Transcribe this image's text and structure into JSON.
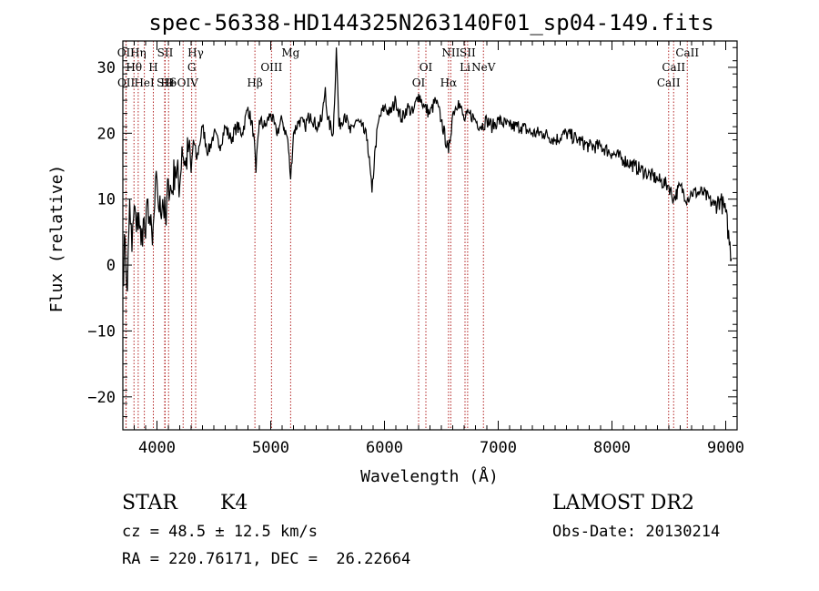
{
  "chart_data": {
    "type": "line",
    "title": "spec-56338-HD144325N263140F01_sp04-149.fits",
    "xlabel": "Wavelength (Å)",
    "ylabel": "Flux (relative)",
    "xlim": [
      3700,
      9100
    ],
    "ylim": [
      -25,
      34
    ],
    "xticks": [
      4000,
      5000,
      6000,
      7000,
      8000,
      9000
    ],
    "yticks": [
      -20,
      -10,
      0,
      10,
      20,
      30
    ],
    "series": [
      {
        "points": [
          [
            3700,
            -2
          ],
          [
            3720,
            4
          ],
          [
            3740,
            -4
          ],
          [
            3760,
            10
          ],
          [
            3780,
            2
          ],
          [
            3800,
            9
          ],
          [
            3820,
            5
          ],
          [
            3840,
            8
          ],
          [
            3860,
            3
          ],
          [
            3880,
            7
          ],
          [
            3900,
            4
          ],
          [
            3920,
            10
          ],
          [
            3940,
            6
          ],
          [
            3960,
            3
          ],
          [
            3980,
            9
          ],
          [
            4000,
            13
          ],
          [
            4020,
            8
          ],
          [
            4050,
            10
          ],
          [
            4080,
            6
          ],
          [
            4100,
            13
          ],
          [
            4130,
            11
          ],
          [
            4160,
            15
          ],
          [
            4200,
            12
          ],
          [
            4220,
            18
          ],
          [
            4250,
            15
          ],
          [
            4280,
            18
          ],
          [
            4300,
            14
          ],
          [
            4320,
            19
          ],
          [
            4350,
            16
          ],
          [
            4400,
            21
          ],
          [
            4450,
            17
          ],
          [
            4500,
            20
          ],
          [
            4550,
            18
          ],
          [
            4600,
            21
          ],
          [
            4650,
            19
          ],
          [
            4700,
            21
          ],
          [
            4750,
            20
          ],
          [
            4800,
            24
          ],
          [
            4850,
            20
          ],
          [
            4870,
            14
          ],
          [
            4900,
            22
          ],
          [
            4950,
            21
          ],
          [
            5000,
            23
          ],
          [
            5050,
            20
          ],
          [
            5100,
            22
          ],
          [
            5150,
            19
          ],
          [
            5175,
            13
          ],
          [
            5200,
            20
          ],
          [
            5250,
            22
          ],
          [
            5300,
            21
          ],
          [
            5350,
            23
          ],
          [
            5400,
            21
          ],
          [
            5450,
            22
          ],
          [
            5480,
            27
          ],
          [
            5500,
            22
          ],
          [
            5550,
            20
          ],
          [
            5577,
            33
          ],
          [
            5600,
            21
          ],
          [
            5650,
            23
          ],
          [
            5700,
            20
          ],
          [
            5750,
            22
          ],
          [
            5800,
            21
          ],
          [
            5850,
            19
          ],
          [
            5890,
            11
          ],
          [
            5920,
            18
          ],
          [
            5950,
            22
          ],
          [
            6000,
            24
          ],
          [
            6050,
            23
          ],
          [
            6100,
            25
          ],
          [
            6150,
            22
          ],
          [
            6200,
            24
          ],
          [
            6250,
            23
          ],
          [
            6300,
            26
          ],
          [
            6350,
            24
          ],
          [
            6400,
            23
          ],
          [
            6450,
            25
          ],
          [
            6500,
            22
          ],
          [
            6563,
            17
          ],
          [
            6600,
            23
          ],
          [
            6650,
            25
          ],
          [
            6700,
            22
          ],
          [
            6750,
            23
          ],
          [
            6800,
            22
          ],
          [
            6850,
            21
          ],
          [
            6900,
            22
          ],
          [
            6950,
            21
          ],
          [
            7000,
            22
          ],
          [
            7100,
            21
          ],
          [
            7200,
            21
          ],
          [
            7300,
            20
          ],
          [
            7400,
            20
          ],
          [
            7500,
            19
          ],
          [
            7600,
            20
          ],
          [
            7700,
            19
          ],
          [
            7800,
            18
          ],
          [
            7900,
            18
          ],
          [
            8000,
            17
          ],
          [
            8100,
            16
          ],
          [
            8200,
            15
          ],
          [
            8300,
            14
          ],
          [
            8400,
            13
          ],
          [
            8500,
            12
          ],
          [
            8542,
            10
          ],
          [
            8600,
            12
          ],
          [
            8662,
            10
          ],
          [
            8700,
            11
          ],
          [
            8800,
            11
          ],
          [
            8900,
            9
          ],
          [
            8950,
            10
          ],
          [
            9000,
            8
          ],
          [
            9050,
            1
          ]
        ]
      }
    ],
    "lines": [
      {
        "label": "OII",
        "wavelength": 3727,
        "row": 0
      },
      {
        "label": "Hη",
        "wavelength": 3835,
        "row": 0
      },
      {
        "label": "Hθ",
        "wavelength": 3798,
        "row": 1
      },
      {
        "label": "OII",
        "wavelength": 3729,
        "row": 2
      },
      {
        "label": "HeI",
        "wavelength": 3889,
        "row": 2
      },
      {
        "label": "SII",
        "wavelength": 4072,
        "row": 0
      },
      {
        "label": "H",
        "wavelength": 3968,
        "row": 1
      },
      {
        "label": "SII",
        "wavelength": 4068,
        "row": 2
      },
      {
        "label": "Hδ",
        "wavelength": 4102,
        "row": 2
      },
      {
        "label": "Hγ",
        "wavelength": 4340,
        "row": 0
      },
      {
        "label": "G",
        "wavelength": 4305,
        "row": 1
      },
      {
        "label": "+OIV",
        "wavelength": 4230,
        "row": 2
      },
      {
        "label": "OIII",
        "wavelength": 5007,
        "row": 1
      },
      {
        "label": "Hβ",
        "wavelength": 4861,
        "row": 2
      },
      {
        "label": "Mg",
        "wavelength": 5175,
        "row": 0
      },
      {
        "label": "OI",
        "wavelength": 6364,
        "row": 1
      },
      {
        "label": "OI",
        "wavelength": 6300,
        "row": 2
      },
      {
        "label": "NII",
        "wavelength": 6583,
        "row": 0
      },
      {
        "label": "SII",
        "wavelength": 6731,
        "row": 0
      },
      {
        "label": "Li",
        "wavelength": 6708,
        "row": 1
      },
      {
        "label": "NeV",
        "wavelength": 6870,
        "row": 1
      },
      {
        "label": "Hα",
        "wavelength": 6563,
        "row": 2
      },
      {
        "label": "CaII",
        "wavelength": 8662,
        "row": 0
      },
      {
        "label": "CaII",
        "wavelength": 8542,
        "row": 1
      },
      {
        "label": "CaII",
        "wavelength": 8498,
        "row": 2
      }
    ],
    "colors": {
      "spectrum": "#000000",
      "line_markers": "#b22222"
    }
  },
  "info": {
    "object_type": "STAR",
    "subclass": "K4",
    "survey": "LAMOST DR2",
    "cz": "cz = 48.5 ± 12.5 km/s",
    "obs_date": "Obs-Date: 20130214",
    "coords": "RA = 220.76171, DEC =  26.22664"
  }
}
